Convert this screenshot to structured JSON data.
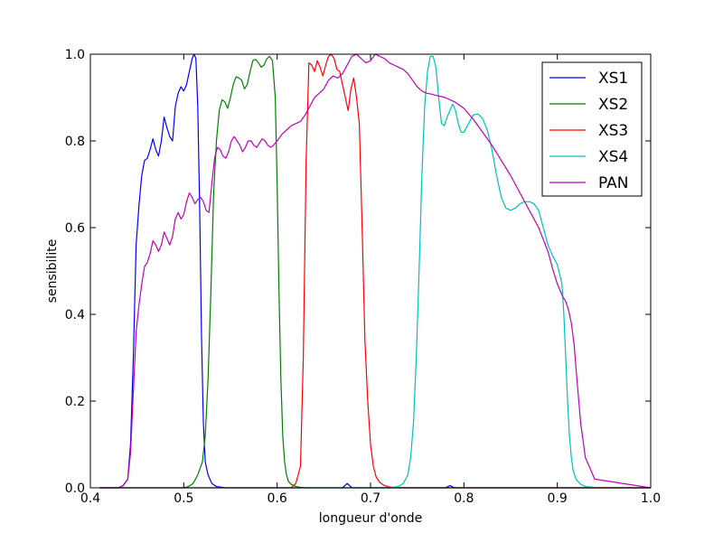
{
  "chart_data": {
    "type": "line",
    "title": "",
    "xlabel": "longueur d'onde",
    "ylabel": "sensibilite",
    "xlim": [
      0.4,
      1.0
    ],
    "ylim": [
      0.0,
      1.0
    ],
    "xticks": [
      0.4,
      0.5,
      0.6,
      0.7,
      0.8,
      0.9,
      1.0
    ],
    "xtick_labels": [
      "0.4",
      "0.5",
      "0.6",
      "0.7",
      "0.8",
      "0.9",
      "1.0"
    ],
    "yticks": [
      0.0,
      0.2,
      0.4,
      0.6,
      0.8,
      1.0
    ],
    "ytick_labels": [
      "0.0",
      "0.2",
      "0.4",
      "0.6",
      "0.8",
      "1.0"
    ],
    "grid": false,
    "legend_position": "top-right",
    "series": [
      {
        "name": "XS1",
        "color": "#0000ff",
        "x": [
          0.41,
          0.43,
          0.435,
          0.44,
          0.443,
          0.446,
          0.449,
          0.452,
          0.455,
          0.458,
          0.461,
          0.464,
          0.467,
          0.47,
          0.473,
          0.476,
          0.479,
          0.482,
          0.485,
          0.488,
          0.491,
          0.494,
          0.497,
          0.5,
          0.503,
          0.506,
          0.509,
          0.511,
          0.513,
          0.515,
          0.517,
          0.519,
          0.521,
          0.523,
          0.526,
          0.53,
          0.535,
          0.545,
          0.6,
          0.66,
          0.67,
          0.675,
          0.68,
          0.75,
          0.78,
          0.785,
          0.79,
          1.0
        ],
        "y": [
          0.0,
          0.0,
          0.005,
          0.02,
          0.1,
          0.3,
          0.56,
          0.65,
          0.72,
          0.755,
          0.76,
          0.78,
          0.805,
          0.78,
          0.765,
          0.8,
          0.855,
          0.83,
          0.81,
          0.8,
          0.88,
          0.91,
          0.925,
          0.915,
          0.93,
          0.96,
          0.99,
          1.0,
          0.99,
          0.88,
          0.65,
          0.35,
          0.15,
          0.06,
          0.03,
          0.01,
          0.003,
          0.0,
          0.0,
          0.0,
          0.0,
          0.01,
          0.0,
          0.0,
          0.0,
          0.005,
          0.0,
          0.0
        ]
      },
      {
        "name": "XS2",
        "color": "#008000",
        "x": [
          0.41,
          0.5,
          0.505,
          0.51,
          0.515,
          0.52,
          0.523,
          0.526,
          0.529,
          0.532,
          0.535,
          0.538,
          0.541,
          0.544,
          0.547,
          0.55,
          0.553,
          0.556,
          0.559,
          0.562,
          0.565,
          0.568,
          0.571,
          0.574,
          0.577,
          0.58,
          0.583,
          0.586,
          0.589,
          0.592,
          0.595,
          0.598,
          0.6,
          0.602,
          0.604,
          0.606,
          0.608,
          0.61,
          0.612,
          0.615,
          0.62,
          0.625,
          0.63,
          0.64,
          1.0
        ],
        "y": [
          0.0,
          0.0,
          0.003,
          0.01,
          0.03,
          0.06,
          0.12,
          0.25,
          0.45,
          0.68,
          0.8,
          0.87,
          0.895,
          0.89,
          0.875,
          0.9,
          0.93,
          0.948,
          0.945,
          0.94,
          0.92,
          0.93,
          0.96,
          0.985,
          0.988,
          0.98,
          0.97,
          0.975,
          0.99,
          0.995,
          0.985,
          0.9,
          0.7,
          0.45,
          0.25,
          0.12,
          0.06,
          0.03,
          0.015,
          0.008,
          0.003,
          0.001,
          0.0,
          0.0,
          0.0
        ]
      },
      {
        "name": "XS3",
        "color": "#ff0000",
        "x": [
          0.41,
          0.615,
          0.62,
          0.625,
          0.628,
          0.631,
          0.634,
          0.637,
          0.64,
          0.643,
          0.646,
          0.649,
          0.652,
          0.655,
          0.658,
          0.661,
          0.664,
          0.667,
          0.67,
          0.673,
          0.676,
          0.679,
          0.682,
          0.685,
          0.688,
          0.691,
          0.694,
          0.697,
          0.7,
          0.703,
          0.706,
          0.71,
          0.715,
          0.72,
          0.73,
          0.74,
          1.0
        ],
        "y": [
          0.0,
          0.0,
          0.01,
          0.05,
          0.3,
          0.75,
          0.98,
          0.975,
          0.96,
          0.985,
          0.97,
          0.95,
          0.975,
          0.995,
          1.0,
          0.99,
          0.965,
          0.96,
          0.93,
          0.9,
          0.87,
          0.92,
          0.945,
          0.9,
          0.84,
          0.6,
          0.34,
          0.2,
          0.1,
          0.05,
          0.025,
          0.012,
          0.005,
          0.002,
          0.0,
          0.0,
          0.0
        ]
      },
      {
        "name": "XS4",
        "color": "#00bfbf",
        "x": [
          0.41,
          0.72,
          0.73,
          0.735,
          0.74,
          0.743,
          0.746,
          0.749,
          0.752,
          0.755,
          0.758,
          0.761,
          0.764,
          0.767,
          0.77,
          0.773,
          0.776,
          0.779,
          0.782,
          0.785,
          0.788,
          0.791,
          0.794,
          0.797,
          0.8,
          0.805,
          0.81,
          0.815,
          0.82,
          0.825,
          0.83,
          0.835,
          0.84,
          0.845,
          0.85,
          0.855,
          0.86,
          0.865,
          0.87,
          0.875,
          0.88,
          0.885,
          0.89,
          0.895,
          0.9,
          0.905,
          0.907,
          0.909,
          0.911,
          0.913,
          0.915,
          0.917,
          0.92,
          0.925,
          0.93,
          0.94,
          1.0
        ],
        "y": [
          0.0,
          0.0,
          0.003,
          0.01,
          0.03,
          0.07,
          0.15,
          0.3,
          0.5,
          0.72,
          0.88,
          0.96,
          0.995,
          0.995,
          0.97,
          0.9,
          0.84,
          0.835,
          0.855,
          0.87,
          0.885,
          0.87,
          0.84,
          0.82,
          0.82,
          0.84,
          0.86,
          0.862,
          0.852,
          0.825,
          0.78,
          0.72,
          0.67,
          0.645,
          0.64,
          0.645,
          0.655,
          0.66,
          0.66,
          0.655,
          0.64,
          0.6,
          0.56,
          0.535,
          0.515,
          0.47,
          0.4,
          0.3,
          0.2,
          0.12,
          0.07,
          0.04,
          0.02,
          0.008,
          0.003,
          0.001,
          0.0
        ]
      },
      {
        "name": "PAN",
        "color": "#bf00bf",
        "x": [
          0.41,
          0.43,
          0.435,
          0.44,
          0.443,
          0.446,
          0.449,
          0.452,
          0.455,
          0.458,
          0.461,
          0.464,
          0.467,
          0.47,
          0.473,
          0.476,
          0.479,
          0.482,
          0.485,
          0.488,
          0.491,
          0.494,
          0.497,
          0.5,
          0.503,
          0.506,
          0.509,
          0.512,
          0.515,
          0.518,
          0.521,
          0.524,
          0.527,
          0.53,
          0.533,
          0.536,
          0.539,
          0.542,
          0.545,
          0.548,
          0.551,
          0.554,
          0.557,
          0.56,
          0.563,
          0.566,
          0.569,
          0.572,
          0.575,
          0.578,
          0.581,
          0.584,
          0.587,
          0.59,
          0.593,
          0.596,
          0.6,
          0.605,
          0.61,
          0.615,
          0.62,
          0.625,
          0.63,
          0.635,
          0.64,
          0.645,
          0.65,
          0.655,
          0.66,
          0.665,
          0.67,
          0.675,
          0.68,
          0.685,
          0.69,
          0.695,
          0.7,
          0.705,
          0.71,
          0.715,
          0.72,
          0.725,
          0.73,
          0.735,
          0.74,
          0.745,
          0.75,
          0.755,
          0.76,
          0.765,
          0.77,
          0.78,
          0.79,
          0.8,
          0.81,
          0.82,
          0.83,
          0.84,
          0.85,
          0.86,
          0.87,
          0.88,
          0.89,
          0.895,
          0.9,
          0.903,
          0.906,
          0.909,
          0.912,
          0.915,
          0.918,
          0.921,
          0.925,
          0.93,
          0.94,
          1.0
        ],
        "y": [
          0.0,
          0.0,
          0.005,
          0.02,
          0.08,
          0.22,
          0.36,
          0.42,
          0.47,
          0.51,
          0.52,
          0.54,
          0.57,
          0.56,
          0.545,
          0.56,
          0.59,
          0.575,
          0.56,
          0.58,
          0.62,
          0.635,
          0.62,
          0.63,
          0.66,
          0.68,
          0.67,
          0.655,
          0.665,
          0.67,
          0.66,
          0.64,
          0.635,
          0.7,
          0.76,
          0.785,
          0.78,
          0.765,
          0.76,
          0.775,
          0.8,
          0.81,
          0.8,
          0.79,
          0.775,
          0.785,
          0.8,
          0.8,
          0.79,
          0.785,
          0.795,
          0.805,
          0.8,
          0.79,
          0.785,
          0.79,
          0.8,
          0.815,
          0.825,
          0.835,
          0.84,
          0.845,
          0.86,
          0.88,
          0.9,
          0.91,
          0.92,
          0.94,
          0.95,
          0.945,
          0.955,
          0.975,
          0.995,
          1.0,
          0.99,
          0.98,
          0.985,
          1.0,
          0.995,
          0.99,
          0.98,
          0.975,
          0.97,
          0.965,
          0.955,
          0.94,
          0.925,
          0.915,
          0.91,
          0.908,
          0.905,
          0.9,
          0.89,
          0.875,
          0.85,
          0.82,
          0.79,
          0.755,
          0.72,
          0.68,
          0.64,
          0.6,
          0.545,
          0.505,
          0.47,
          0.455,
          0.44,
          0.43,
          0.41,
          0.38,
          0.33,
          0.25,
          0.15,
          0.07,
          0.02,
          0.0
        ]
      }
    ]
  }
}
